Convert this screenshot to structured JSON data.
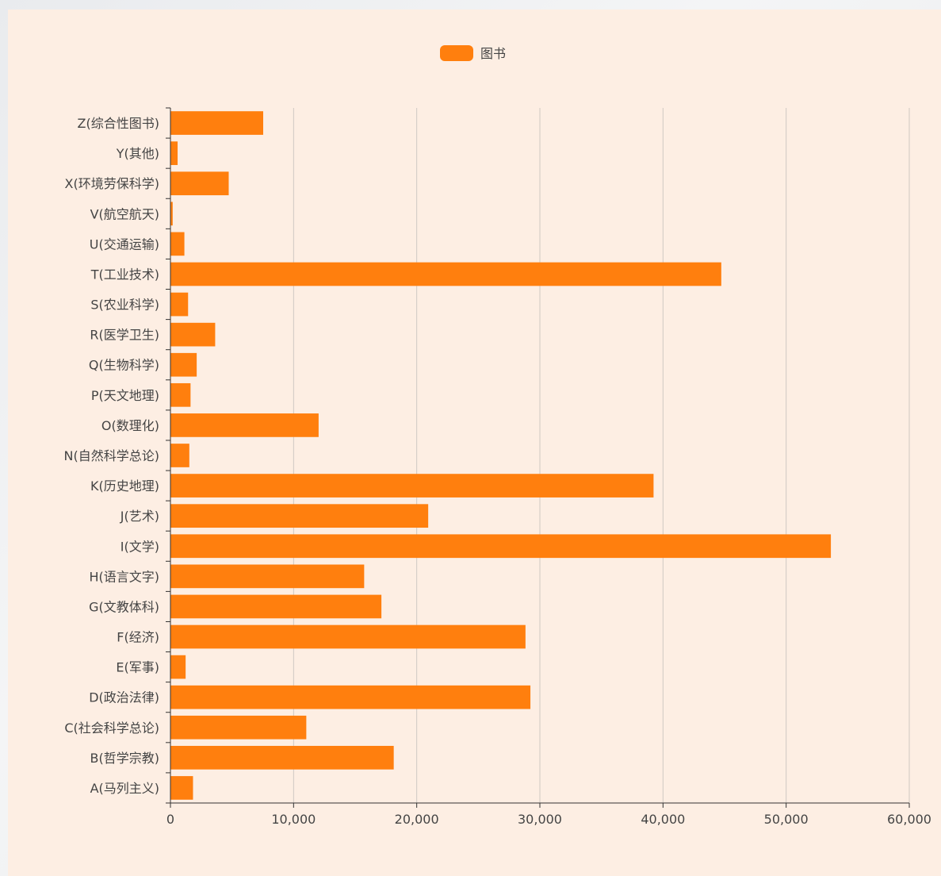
{
  "chart_data": {
    "type": "bar",
    "orientation": "horizontal",
    "categories": [
      "A(马列主义)",
      "B(哲学宗教)",
      "C(社会科学总论)",
      "D(政治法律)",
      "E(军事)",
      "F(经济)",
      "G(文教体科)",
      "H(语言文字)",
      "I(文学)",
      "J(艺术)",
      "K(历史地理)",
      "N(自然科学总论)",
      "O(数理化)",
      "P(天文地理)",
      "Q(生物科学)",
      "R(医学卫生)",
      "S(农业科学)",
      "T(工业技术)",
      "U(交通运输)",
      "V(航空航天)",
      "X(环境劳保科学)",
      "Y(其他)",
      "Z(综合性图书)"
    ],
    "series": [
      {
        "name": "图书",
        "color": "#ff7f0e",
        "values": [
          1800,
          18100,
          11000,
          29200,
          1200,
          28800,
          17100,
          15700,
          53600,
          20900,
          39200,
          1500,
          12000,
          1600,
          2100,
          3600,
          1400,
          44700,
          1100,
          150,
          4700,
          550,
          7500
        ]
      }
    ],
    "x_ticks": [
      "0",
      "10,000",
      "20,000",
      "30,000",
      "40,000",
      "50,000",
      "60,000"
    ],
    "xlim": [
      0,
      60000
    ],
    "grid": "vertical",
    "legend_position": "top-center"
  },
  "colors": {
    "bar": "#ff7f0e",
    "panel_bg": "#fdeee3",
    "grid": "#cfc8c2",
    "axis": "#333333"
  }
}
